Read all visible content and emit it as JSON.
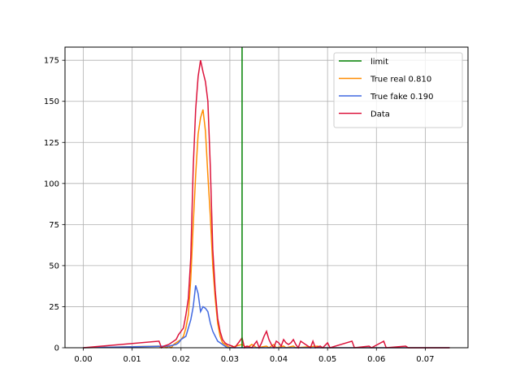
{
  "chart_data": {
    "type": "histogram",
    "title": "",
    "xlabel": "",
    "ylabel": "",
    "xlim": [
      -0.00375,
      0.07875
    ],
    "ylim": [
      0,
      183
    ],
    "xticks": [
      0.0,
      0.01,
      0.02,
      0.03,
      0.04,
      0.05,
      0.06,
      0.07
    ],
    "xtick_labels": [
      "0.00",
      "0.01",
      "0.02",
      "0.03",
      "0.04",
      "0.05",
      "0.06",
      "0.07"
    ],
    "yticks": [
      0,
      25,
      50,
      75,
      100,
      125,
      150,
      175
    ],
    "ytick_labels": [
      "0",
      "25",
      "50",
      "75",
      "100",
      "125",
      "150",
      "175"
    ],
    "grid": true,
    "legend_position": "top-right",
    "bins": {
      "start": 0.0,
      "end": 0.075,
      "width": 0.0005
    },
    "vline": {
      "name": "limit",
      "x": 0.0325,
      "color": "#008000"
    },
    "series": [
      {
        "name": "True real 0.810",
        "color": "#ff8c00",
        "points": [
          [
            0.0155,
            1
          ],
          [
            0.0165,
            1
          ],
          [
            0.0175,
            1
          ],
          [
            0.0185,
            2
          ],
          [
            0.019,
            3
          ],
          [
            0.0195,
            4
          ],
          [
            0.02,
            5
          ],
          [
            0.0205,
            7
          ],
          [
            0.021,
            12
          ],
          [
            0.0215,
            20
          ],
          [
            0.022,
            42
          ],
          [
            0.0225,
            75
          ],
          [
            0.023,
            105
          ],
          [
            0.0235,
            130
          ],
          [
            0.024,
            140
          ],
          [
            0.0245,
            145
          ],
          [
            0.025,
            132
          ],
          [
            0.0255,
            105
          ],
          [
            0.026,
            80
          ],
          [
            0.0265,
            50
          ],
          [
            0.027,
            30
          ],
          [
            0.0275,
            15
          ],
          [
            0.028,
            7
          ],
          [
            0.0285,
            3
          ],
          [
            0.029,
            2
          ],
          [
            0.0295,
            1
          ],
          [
            0.0325,
            2
          ],
          [
            0.033,
            1
          ],
          [
            0.0345,
            2
          ],
          [
            0.035,
            1
          ],
          [
            0.0375,
            1
          ],
          [
            0.039,
            2
          ],
          [
            0.041,
            1
          ],
          [
            0.043,
            1
          ],
          [
            0.048,
            1
          ]
        ]
      },
      {
        "name": "True fake 0.190",
        "color": "#4169e1",
        "points": [
          [
            0.0175,
            1
          ],
          [
            0.018,
            1
          ],
          [
            0.0185,
            1
          ],
          [
            0.019,
            2
          ],
          [
            0.0195,
            3
          ],
          [
            0.02,
            5
          ],
          [
            0.0205,
            5
          ],
          [
            0.021,
            7
          ],
          [
            0.0215,
            12
          ],
          [
            0.022,
            17
          ],
          [
            0.0225,
            25
          ],
          [
            0.023,
            38
          ],
          [
            0.0235,
            33
          ],
          [
            0.024,
            22
          ],
          [
            0.0245,
            25
          ],
          [
            0.025,
            24
          ],
          [
            0.0255,
            22
          ],
          [
            0.026,
            15
          ],
          [
            0.0265,
            10
          ],
          [
            0.027,
            7
          ],
          [
            0.0275,
            4
          ],
          [
            0.028,
            3
          ],
          [
            0.0285,
            2
          ],
          [
            0.029,
            1
          ]
        ]
      },
      {
        "name": "Data",
        "color": "#dc143c",
        "points": [
          [
            0.0155,
            4
          ],
          [
            0.0165,
            1
          ],
          [
            0.017,
            1
          ],
          [
            0.0175,
            2
          ],
          [
            0.018,
            2
          ],
          [
            0.0185,
            4
          ],
          [
            0.019,
            5
          ],
          [
            0.0195,
            8
          ],
          [
            0.02,
            10
          ],
          [
            0.0205,
            12
          ],
          [
            0.021,
            20
          ],
          [
            0.0215,
            30
          ],
          [
            0.022,
            55
          ],
          [
            0.0225,
            110
          ],
          [
            0.023,
            145
          ],
          [
            0.0235,
            165
          ],
          [
            0.024,
            175
          ],
          [
            0.0245,
            168
          ],
          [
            0.025,
            162
          ],
          [
            0.0255,
            150
          ],
          [
            0.026,
            110
          ],
          [
            0.0265,
            60
          ],
          [
            0.027,
            35
          ],
          [
            0.0275,
            18
          ],
          [
            0.028,
            10
          ],
          [
            0.0285,
            5
          ],
          [
            0.029,
            3
          ],
          [
            0.0295,
            2
          ],
          [
            0.03,
            2
          ],
          [
            0.0305,
            1
          ],
          [
            0.0325,
            6
          ],
          [
            0.0335,
            1
          ],
          [
            0.034,
            1
          ],
          [
            0.035,
            2
          ],
          [
            0.0355,
            4
          ],
          [
            0.0365,
            3
          ],
          [
            0.037,
            7
          ],
          [
            0.0375,
            10
          ],
          [
            0.038,
            5
          ],
          [
            0.0385,
            2
          ],
          [
            0.0395,
            4
          ],
          [
            0.04,
            3
          ],
          [
            0.0405,
            1
          ],
          [
            0.041,
            5
          ],
          [
            0.0415,
            3
          ],
          [
            0.042,
            2
          ],
          [
            0.0425,
            3
          ],
          [
            0.043,
            5
          ],
          [
            0.0435,
            2
          ],
          [
            0.0445,
            4
          ],
          [
            0.045,
            4
          ],
          [
            0.0455,
            2
          ],
          [
            0.046,
            1
          ],
          [
            0.047,
            4
          ],
          [
            0.0485,
            1
          ],
          [
            0.05,
            3
          ],
          [
            0.055,
            4
          ],
          [
            0.0585,
            1
          ],
          [
            0.0615,
            4
          ],
          [
            0.066,
            1
          ]
        ]
      }
    ]
  }
}
